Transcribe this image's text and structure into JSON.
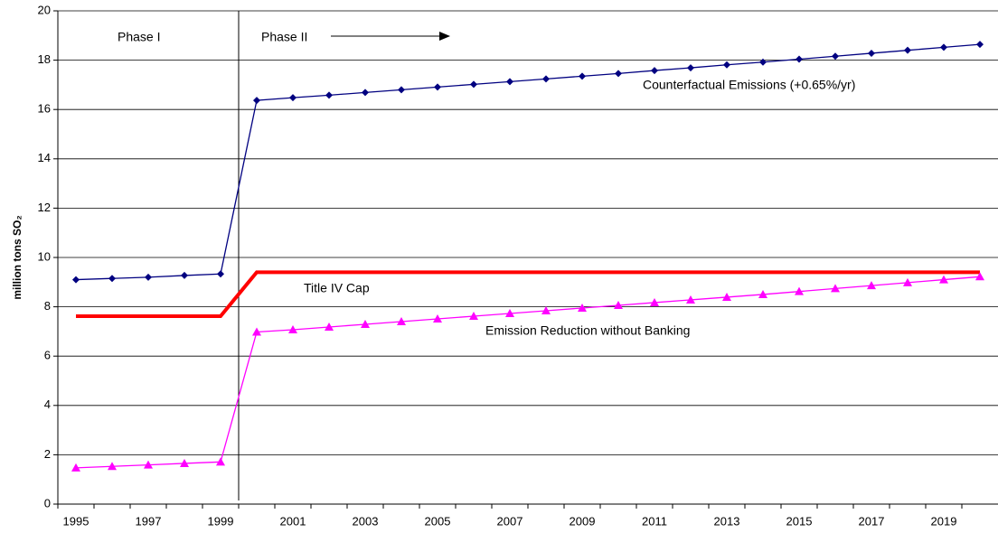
{
  "chart_data": {
    "type": "line",
    "y_label": "million tons SO₂",
    "categories": [
      "1995",
      null,
      "1997",
      null,
      "1999",
      null,
      "2001",
      null,
      "2003",
      null,
      "2005",
      null,
      "2007",
      null,
      "2009",
      null,
      "2011",
      null,
      "2013",
      null,
      "2015",
      null,
      "2017",
      null,
      "2019",
      null
    ],
    "ylim": [
      0,
      20
    ],
    "yticks": [
      0,
      2,
      4,
      6,
      8,
      10,
      12,
      14,
      16,
      18,
      20
    ],
    "grid": true,
    "phase_labels": [
      "Phase I",
      "Phase II"
    ],
    "series": [
      {
        "name": "Counterfactual Emissions (+0.65%/yr)",
        "color": "#000080",
        "marker": "diamond",
        "values": [
          9.1,
          9.15,
          9.2,
          9.27,
          9.33,
          16.37,
          16.48,
          16.58,
          16.69,
          16.8,
          16.91,
          17.02,
          17.13,
          17.24,
          17.35,
          17.46,
          17.58,
          17.69,
          17.81,
          17.92,
          18.04,
          18.16,
          18.28,
          18.4,
          18.52,
          18.64
        ]
      },
      {
        "name": "Title IV Cap",
        "color": "#ff0000",
        "values": [
          7.62,
          7.62,
          7.62,
          7.62,
          7.62,
          9.4,
          9.4,
          9.4,
          9.4,
          9.4,
          9.4,
          9.4,
          9.4,
          9.4,
          9.4,
          9.4,
          9.4,
          9.4,
          9.4,
          9.4,
          9.4,
          9.4,
          9.4,
          9.4,
          9.4,
          9.4
        ]
      },
      {
        "name": "Emission Reduction without Banking",
        "color": "#ff00ff",
        "marker": "triangle",
        "values": [
          1.47,
          1.53,
          1.59,
          1.65,
          1.71,
          6.98,
          7.07,
          7.18,
          7.29,
          7.4,
          7.51,
          7.62,
          7.73,
          7.84,
          7.95,
          8.06,
          8.17,
          8.28,
          8.39,
          8.5,
          8.62,
          8.74,
          8.86,
          8.98,
          9.1,
          9.22
        ]
      }
    ]
  }
}
